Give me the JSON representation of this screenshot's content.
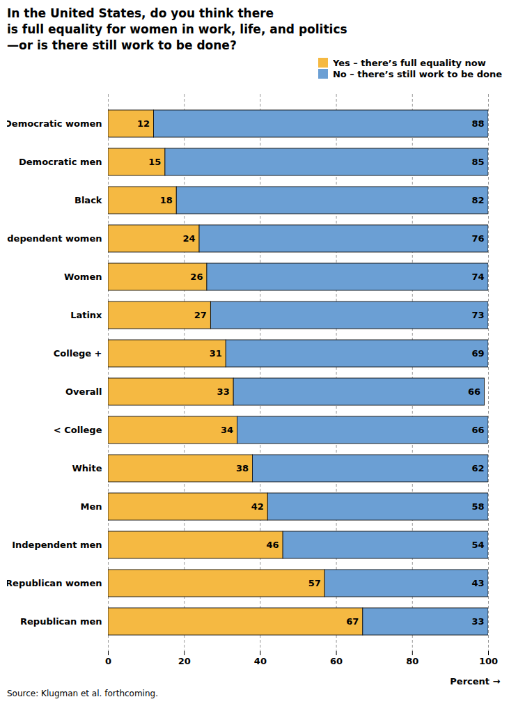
{
  "chart_data": {
    "type": "bar",
    "orientation": "horizontal",
    "stacked": true,
    "title": "In the United States, do you think there\nis full equality for women in work, life, and politics\n—or is there still work to be done?",
    "categories": [
      "Democratic women",
      "Democratic men",
      "Black",
      "Independent women",
      "Women",
      "Latinx",
      "College +",
      "Overall",
      "< College",
      "White",
      "Men",
      "Independent men",
      "Republican women",
      "Republican men"
    ],
    "series": [
      {
        "name": "Yes – there’s full equality now",
        "color": "#F5B942",
        "values": [
          12,
          15,
          18,
          24,
          26,
          27,
          31,
          33,
          34,
          38,
          42,
          46,
          57,
          67
        ]
      },
      {
        "name": "No – there’s still work to be done",
        "color": "#6B9FD4",
        "values": [
          88,
          85,
          82,
          76,
          74,
          73,
          69,
          66,
          66,
          62,
          58,
          54,
          43,
          33
        ]
      }
    ],
    "xlabel": "Percent",
    "xlim": [
      0,
      100
    ],
    "xticks": [
      0,
      20,
      40,
      60,
      80,
      100
    ],
    "grid": true,
    "legend": "top-right",
    "data_labels": true,
    "annotations": [
      "Source: Klugman et al. forthcoming."
    ]
  }
}
